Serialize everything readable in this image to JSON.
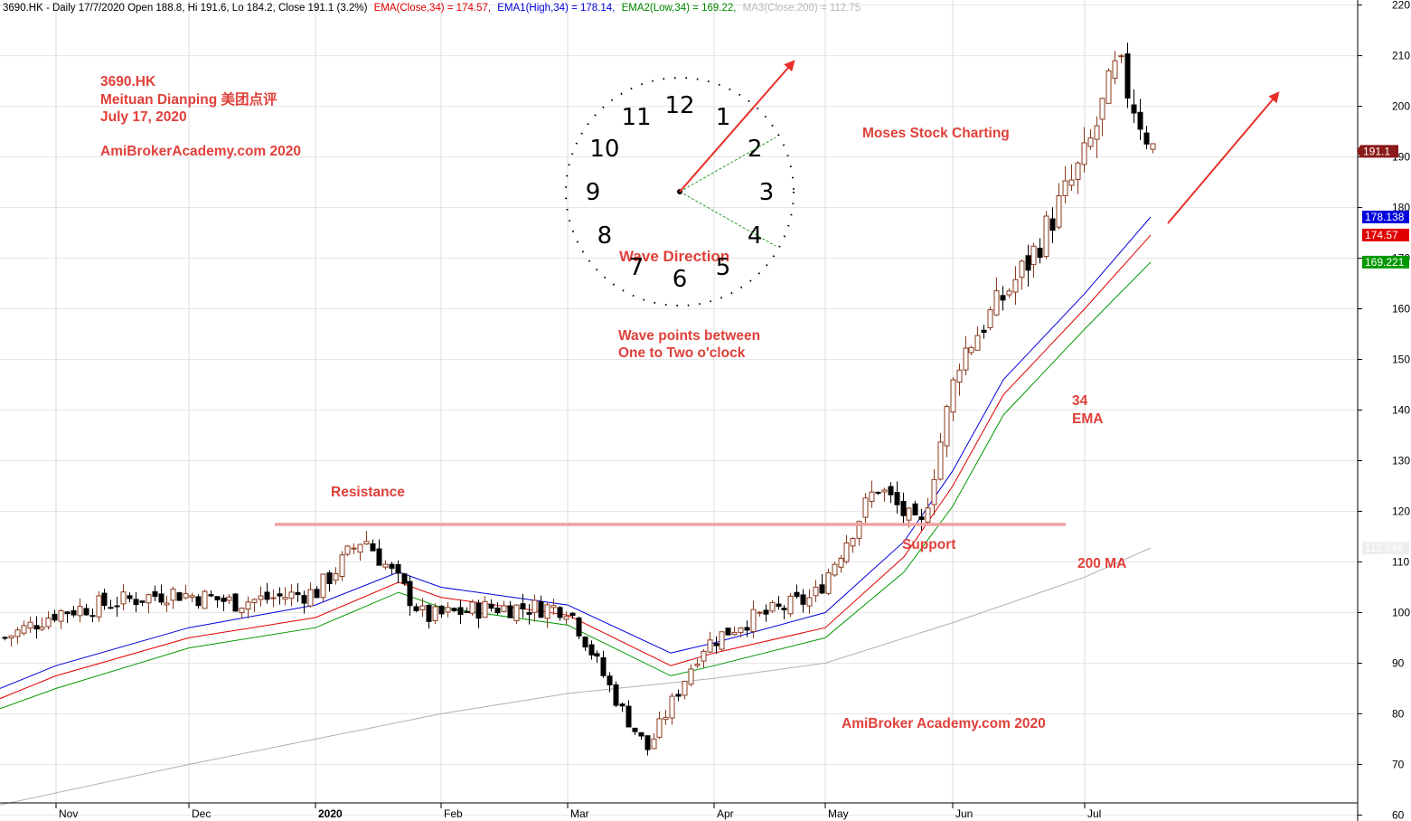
{
  "header": {
    "ticker_info": "3690.HK - Daily 17/7/2020 Open 188.8, Hi 191.6, Lo 184.2, Close 191.1 (3.2%)",
    "ema_close": "EMA(Close,34) = 174.57,",
    "ema_high": "EMA1(High,34) = 178.14,",
    "ema_low": "EMA2(Low,34) = 169.22,",
    "ma_close": "MA3(Close,200) = 112.75"
  },
  "annotations": {
    "title_ticker": "3690.HK",
    "title_name": "Meituan Dianping 美团点评",
    "title_date": "July 17, 2020",
    "title_site": "AmiBrokerAcademy.com  2020",
    "moses": "Moses Stock Charting",
    "wave_direction": "Wave Direction",
    "wave_points_1": "Wave points between",
    "wave_points_2": "One to Two o'clock",
    "resistance": "Resistance",
    "support": "Support",
    "ema_34_a": "34",
    "ema_34_b": "EMA",
    "ma_200": "200 MA",
    "footer_site": "AmiBroker Academy.com 2020"
  },
  "clock": {
    "numbers": [
      "12",
      "1",
      "2",
      "3",
      "4",
      "5",
      "6",
      "7",
      "8",
      "9",
      "10",
      "11"
    ]
  },
  "colors": {
    "up_candle": "#8b3a1e",
    "down_candle": "#000000",
    "ema_close": "#e00000",
    "ema_high": "#0000dd",
    "ema_low": "#009900",
    "ma200": "#b0b0b0",
    "annotation": "#e0403a",
    "resistance_line": "#f2a0a0",
    "arrow": "#e8302a"
  },
  "chart_data": {
    "type": "candlestick",
    "x_ticks": [
      "Nov",
      "Dec",
      "2020",
      "Feb",
      "Mar",
      "Apr",
      "May",
      "Jun",
      "Jul"
    ],
    "y_ticks": [
      60,
      70,
      80,
      90,
      100,
      110,
      120,
      130,
      140,
      150,
      160,
      170,
      180,
      190,
      200,
      210,
      220
    ],
    "ylim": [
      59,
      221
    ],
    "grid": true,
    "last_close": 191.1,
    "price_tags": [
      {
        "label": "191.1",
        "value": 191.1,
        "color": "#8b1a1a"
      },
      {
        "label": "178.138",
        "value": 178.138,
        "color": "#0000dd"
      },
      {
        "label": "174.57",
        "value": 174.57,
        "color": "#e00000"
      },
      {
        "label": "169.221",
        "value": 169.221,
        "color": "#009900"
      },
      {
        "label": "112.746",
        "value": 112.746,
        "color": "#909090"
      }
    ],
    "resistance_level": 116.3,
    "anchors": [
      {
        "month": "Nov",
        "price": 95
      },
      {
        "month": "Nov",
        "price": 100
      },
      {
        "month": "Dec",
        "price": 104
      },
      {
        "month": "Dec",
        "price": 102
      },
      {
        "month": "2020",
        "price": 104
      },
      {
        "month": "2020",
        "price": 115
      },
      {
        "month": "Feb",
        "price": 99
      },
      {
        "month": "Feb",
        "price": 101
      },
      {
        "month": "Mar",
        "price": 101
      },
      {
        "month": "Mar",
        "price": 80
      },
      {
        "month": "Mar",
        "price": 73
      },
      {
        "month": "Apr",
        "price": 93
      },
      {
        "month": "Apr",
        "price": 98
      },
      {
        "month": "May",
        "price": 103
      },
      {
        "month": "May",
        "price": 125
      },
      {
        "month": "May",
        "price": 116
      },
      {
        "month": "Jun",
        "price": 150
      },
      {
        "month": "Jun",
        "price": 170
      },
      {
        "month": "Jul",
        "price": 190
      },
      {
        "month": "Jul",
        "price": 208
      },
      {
        "month": "Jul",
        "price": 191.1
      }
    ],
    "series": [
      {
        "name": "EMA(Close,34)",
        "points": [
          [
            0,
            83
          ],
          [
            62,
            87.5
          ],
          [
            209,
            95
          ],
          [
            349,
            99
          ],
          [
            441,
            106
          ],
          [
            488,
            103
          ],
          [
            628,
            99.5
          ],
          [
            742,
            89.5
          ],
          [
            790,
            92
          ],
          [
            913,
            97
          ],
          [
            1000,
            111
          ],
          [
            1054,
            125
          ],
          [
            1110,
            143
          ],
          [
            1200,
            160
          ],
          [
            1273,
            174.57
          ]
        ]
      },
      {
        "name": "EMA1(High,34)",
        "points": [
          [
            0,
            85
          ],
          [
            62,
            89.5
          ],
          [
            209,
            97
          ],
          [
            349,
            101.5
          ],
          [
            441,
            108
          ],
          [
            488,
            105
          ],
          [
            628,
            101.5
          ],
          [
            742,
            92
          ],
          [
            790,
            94
          ],
          [
            913,
            100
          ],
          [
            1000,
            114
          ],
          [
            1054,
            128
          ],
          [
            1110,
            146
          ],
          [
            1200,
            163
          ],
          [
            1273,
            178.14
          ]
        ]
      },
      {
        "name": "EMA2(Low,34)",
        "points": [
          [
            0,
            81
          ],
          [
            62,
            85
          ],
          [
            209,
            93
          ],
          [
            349,
            97
          ],
          [
            441,
            104
          ],
          [
            488,
            101
          ],
          [
            628,
            97.5
          ],
          [
            742,
            87.5
          ],
          [
            790,
            89.5
          ],
          [
            913,
            95
          ],
          [
            1000,
            108
          ],
          [
            1054,
            121
          ],
          [
            1110,
            139
          ],
          [
            1200,
            156
          ],
          [
            1273,
            169.22
          ]
        ]
      },
      {
        "name": "MA3(Close,200)",
        "points": [
          [
            0,
            62
          ],
          [
            209,
            70
          ],
          [
            349,
            75
          ],
          [
            488,
            80
          ],
          [
            628,
            84
          ],
          [
            790,
            87
          ],
          [
            913,
            90
          ],
          [
            1054,
            98
          ],
          [
            1200,
            107
          ],
          [
            1273,
            112.75
          ]
        ]
      }
    ]
  }
}
